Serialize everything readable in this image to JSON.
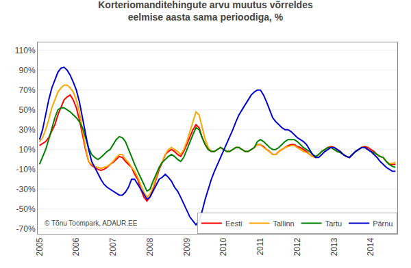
{
  "chart_data": {
    "type": "line",
    "title": "Korteriomanditehingute arvu muutus võrreldes\neelmise aasta sama perioodiga, %",
    "x": [
      2005.0,
      2005.08333,
      2005.16666,
      2005.24999,
      2005.33332,
      2005.41665,
      2005.49998,
      2005.58331,
      2005.66664,
      2005.74997,
      2005.8333,
      2005.91663,
      2005.99996,
      2006.08329,
      2006.16662,
      2006.24995,
      2006.33328,
      2006.41661,
      2006.49994,
      2006.58327,
      2006.6666,
      2006.74993,
      2006.83326,
      2006.91659,
      2006.99992,
      2007.08325,
      2007.16658,
      2007.24991,
      2007.33324,
      2007.41657,
      2007.4999,
      2007.58323,
      2007.66656,
      2007.74989,
      2007.83322,
      2007.91655,
      2007.99988,
      2008.08321,
      2008.16654,
      2008.24987,
      2008.3332,
      2008.41653,
      2008.49986,
      2008.58319,
      2008.66652,
      2008.74985,
      2008.83318,
      2008.91651,
      2008.99984,
      2009.08317,
      2009.1665,
      2009.24983,
      2009.33316,
      2009.41649,
      2009.49982,
      2009.58315,
      2009.66648,
      2009.74981,
      2009.83314,
      2009.91647,
      2009.9998,
      2010.08313,
      2010.16646,
      2010.24979,
      2010.33312,
      2010.41645,
      2010.49978,
      2010.58311,
      2010.66644,
      2010.74977,
      2010.8331,
      2010.91643,
      2010.99976,
      2011.08309,
      2011.16642,
      2011.24975,
      2011.33308,
      2011.41641,
      2011.49974,
      2011.58307,
      2011.6664,
      2011.74973,
      2011.83306,
      2011.91639,
      2011.99972,
      2012.08305,
      2012.16638,
      2012.24971,
      2012.33304,
      2012.41637,
      2012.4997,
      2012.58303,
      2012.66636,
      2012.74969,
      2012.83302,
      2012.91635,
      2012.99968,
      2013.08301,
      2013.16634,
      2013.24967,
      2013.333,
      2013.41633,
      2013.49966,
      2013.58299,
      2013.66632,
      2013.74965,
      2013.83298,
      2013.91631,
      2013.99964,
      2014.08297,
      2014.1663,
      2014.24963,
      2014.33296,
      2014.41629,
      2014.49962,
      2014.58295,
      2014.66628
    ],
    "series": [
      {
        "name": "Eesti",
        "color": "#ff0000",
        "values": [
          14,
          16,
          18,
          22,
          28,
          35,
          45,
          52,
          60,
          63,
          65,
          60,
          52,
          40,
          25,
          10,
          -2,
          -6,
          -8,
          -10,
          -11,
          -10,
          -8,
          -5,
          -3,
          0,
          3,
          2,
          -2,
          -5,
          -8,
          -15,
          -20,
          -30,
          -38,
          -42,
          -38,
          -30,
          -20,
          -10,
          -3,
          5,
          8,
          10,
          8,
          5,
          3,
          8,
          15,
          22,
          30,
          35,
          32,
          22,
          15,
          10,
          8,
          8,
          10,
          12,
          10,
          8,
          8,
          10,
          12,
          12,
          10,
          8,
          8,
          10,
          12,
          15,
          15,
          13,
          10,
          8,
          5,
          5,
          8,
          10,
          12,
          14,
          15,
          15,
          13,
          12,
          10,
          8,
          5,
          3,
          2,
          5,
          8,
          10,
          12,
          13,
          12,
          10,
          8,
          5,
          3,
          2,
          5,
          8,
          10,
          12,
          13,
          12,
          10,
          8,
          5,
          3,
          2,
          -2,
          -5,
          -5,
          -5
        ]
      },
      {
        "name": "Tallinn",
        "color": "#ffa500",
        "values": [
          18,
          22,
          30,
          40,
          52,
          60,
          68,
          72,
          75,
          75,
          72,
          68,
          60,
          48,
          30,
          12,
          -2,
          -5,
          -7,
          -8,
          -9,
          -8,
          -7,
          -5,
          -2,
          2,
          5,
          5,
          0,
          -3,
          -8,
          -12,
          -18,
          -26,
          -33,
          -38,
          -35,
          -28,
          -18,
          -8,
          -2,
          5,
          10,
          12,
          10,
          8,
          5,
          10,
          18,
          28,
          38,
          48,
          45,
          32,
          20,
          12,
          8,
          8,
          10,
          12,
          10,
          8,
          8,
          10,
          12,
          12,
          10,
          8,
          8,
          10,
          12,
          15,
          15,
          12,
          10,
          8,
          5,
          5,
          8,
          10,
          12,
          13,
          14,
          14,
          12,
          10,
          8,
          7,
          5,
          3,
          2,
          5,
          8,
          10,
          12,
          12,
          10,
          8,
          7,
          5,
          3,
          2,
          5,
          8,
          10,
          12,
          12,
          10,
          8,
          7,
          5,
          3,
          2,
          -2,
          -4,
          -4,
          -3
        ]
      },
      {
        "name": "Tartu",
        "color": "#008000",
        "values": [
          -5,
          2,
          10,
          20,
          32,
          42,
          50,
          52,
          52,
          50,
          48,
          45,
          42,
          38,
          32,
          22,
          12,
          5,
          2,
          0,
          2,
          5,
          8,
          10,
          15,
          20,
          23,
          22,
          18,
          10,
          2,
          -5,
          -12,
          -18,
          -25,
          -32,
          -30,
          -22,
          -15,
          -8,
          -3,
          0,
          3,
          5,
          3,
          0,
          -2,
          2,
          10,
          18,
          25,
          32,
          30,
          22,
          15,
          10,
          8,
          8,
          10,
          12,
          10,
          8,
          8,
          10,
          12,
          12,
          10,
          8,
          8,
          10,
          12,
          18,
          20,
          18,
          15,
          12,
          10,
          10,
          12,
          15,
          18,
          20,
          20,
          20,
          18,
          15,
          12,
          10,
          8,
          5,
          3,
          5,
          8,
          10,
          12,
          12,
          10,
          8,
          7,
          5,
          3,
          2,
          5,
          8,
          10,
          12,
          12,
          10,
          8,
          7,
          5,
          3,
          2,
          -2,
          -5,
          -7,
          -8
        ]
      },
      {
        "name": "Pärnu",
        "color": "#0000cd",
        "values": [
          20,
          30,
          45,
          60,
          72,
          80,
          88,
          92,
          93,
          90,
          85,
          78,
          70,
          58,
          42,
          25,
          10,
          -2,
          -8,
          -15,
          -20,
          -25,
          -28,
          -30,
          -32,
          -34,
          -36,
          -36,
          -33,
          -28,
          -20,
          -20,
          -25,
          -30,
          -35,
          -40,
          -38,
          -32,
          -25,
          -20,
          -18,
          -15,
          -18,
          -22,
          -28,
          -32,
          -38,
          -45,
          -52,
          -58,
          -62,
          -66,
          -62,
          -52,
          -40,
          -30,
          -20,
          -12,
          -5,
          2,
          8,
          15,
          22,
          30,
          38,
          45,
          50,
          55,
          60,
          65,
          68,
          70,
          70,
          65,
          58,
          50,
          42,
          38,
          35,
          32,
          30,
          30,
          28,
          25,
          22,
          20,
          18,
          15,
          10,
          5,
          2,
          2,
          5,
          8,
          10,
          12,
          12,
          10,
          8,
          5,
          3,
          2,
          5,
          8,
          10,
          12,
          12,
          10,
          8,
          5,
          2,
          -2,
          -5,
          -8,
          -10,
          -12,
          -12
        ]
      }
    ],
    "xlim": [
      2004.95,
      2014.71628
    ],
    "xticks": [
      2005,
      2006,
      2007,
      2008,
      2009,
      2010,
      2011,
      2012,
      2013,
      2014
    ],
    "ylim": [
      -75,
      118
    ],
    "yticks": [
      {
        "value": -70,
        "label": "-70%"
      },
      {
        "value": -50,
        "label": "-50%"
      },
      {
        "value": -30,
        "label": "-30%"
      },
      {
        "value": -10,
        "label": "-10%"
      },
      {
        "value": 10,
        "label": "10%"
      },
      {
        "value": 30,
        "label": "30%"
      },
      {
        "value": 50,
        "label": "50%"
      },
      {
        "value": 70,
        "label": "70%"
      },
      {
        "value": 90,
        "label": "90%"
      },
      {
        "value": 110,
        "label": "110%"
      }
    ],
    "grid": "y",
    "legend": "lower right",
    "annotations": [
      "© Tõnu Toompark, ADAUR.EE"
    ]
  }
}
